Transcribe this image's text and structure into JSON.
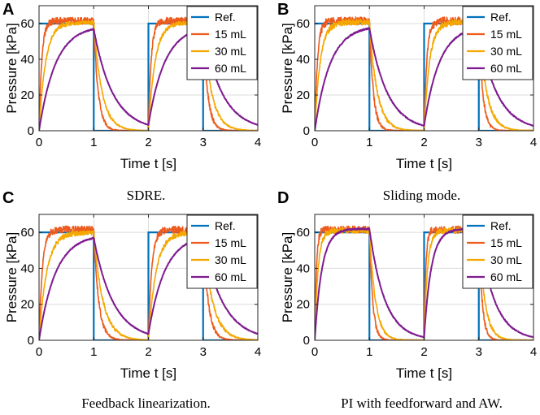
{
  "chart_data": [
    {
      "type": "line",
      "panel": "A",
      "caption": "SDRE.",
      "title": "",
      "xlabel": "Time t [s]",
      "ylabel": "Pressure [kPa]",
      "xlim": [
        0,
        4
      ],
      "ylim": [
        0,
        70
      ],
      "xticks": [
        "0",
        "1",
        "2",
        "3",
        "4"
      ],
      "yticks": [
        "0",
        "20",
        "40",
        "60"
      ],
      "grid": true,
      "legend_position": "top-right",
      "series": [
        {
          "name": "Ref.",
          "color": "#0072BD",
          "kind": "ref",
          "high": 60
        },
        {
          "name": "15 mL",
          "color": "#ED5B1E",
          "kind": "resp",
          "tau": 0.05,
          "plateau": 61.5,
          "decay": 0.08,
          "noise": 2.0
        },
        {
          "name": "30 mL",
          "color": "#F5A800",
          "kind": "resp",
          "tau": 0.12,
          "plateau": 60.5,
          "decay": 0.15,
          "noise": 1.2
        },
        {
          "name": "60 mL",
          "color": "#7E1B8F",
          "kind": "resp",
          "tau": 0.3,
          "plateau": 59.0,
          "decay": 0.35,
          "noise": 0.3
        }
      ]
    },
    {
      "type": "line",
      "panel": "B",
      "caption": "Sliding mode.",
      "title": "",
      "xlabel": "Time t [s]",
      "ylabel": "Pressure [kPa]",
      "xlim": [
        0,
        4
      ],
      "ylim": [
        0,
        70
      ],
      "xticks": [
        "0",
        "1",
        "2",
        "3",
        "4"
      ],
      "yticks": [
        "0",
        "20",
        "40",
        "60"
      ],
      "grid": true,
      "legend_position": "top-right",
      "series": [
        {
          "name": "Ref.",
          "color": "#0072BD",
          "kind": "ref",
          "high": 60
        },
        {
          "name": "15 mL",
          "color": "#ED5B1E",
          "kind": "resp",
          "tau": 0.05,
          "plateau": 61.5,
          "decay": 0.07,
          "noise": 2.2
        },
        {
          "name": "30 mL",
          "color": "#F5A800",
          "kind": "resp",
          "tau": 0.1,
          "plateau": 60.8,
          "decay": 0.14,
          "noise": 1.6
        },
        {
          "name": "60 mL",
          "color": "#7E1B8F",
          "kind": "resp",
          "tau": 0.28,
          "plateau": 59.0,
          "decay": 0.33,
          "noise": 0.4
        }
      ]
    },
    {
      "type": "line",
      "panel": "C",
      "caption": "Feedback linearization.",
      "title": "",
      "xlabel": "Time t [s]",
      "ylabel": "Pressure [kPa]",
      "xlim": [
        0,
        4
      ],
      "ylim": [
        0,
        70
      ],
      "xticks": [
        "0",
        "1",
        "2",
        "3",
        "4"
      ],
      "yticks": [
        "0",
        "20",
        "40",
        "60"
      ],
      "grid": true,
      "legend_position": "top-right",
      "series": [
        {
          "name": "Ref.",
          "color": "#0072BD",
          "kind": "ref",
          "high": 60
        },
        {
          "name": "15 mL",
          "color": "#ED5B1E",
          "kind": "resp",
          "tau": 0.06,
          "plateau": 61.5,
          "decay": 0.09,
          "noise": 2.0
        },
        {
          "name": "30 mL",
          "color": "#F5A800",
          "kind": "resp",
          "tau": 0.14,
          "plateau": 60.0,
          "decay": 0.17,
          "noise": 1.5
        },
        {
          "name": "60 mL",
          "color": "#7E1B8F",
          "kind": "resp",
          "tau": 0.3,
          "plateau": 59.0,
          "decay": 0.36,
          "noise": 0.3
        }
      ]
    },
    {
      "type": "line",
      "panel": "D",
      "caption": "PI with feedforward and AW.",
      "title": "",
      "xlabel": "Time t [s]",
      "ylabel": "Pressure [kPa]",
      "xlim": [
        0,
        4
      ],
      "ylim": [
        0,
        70
      ],
      "xticks": [
        "0",
        "1",
        "2",
        "3",
        "4"
      ],
      "yticks": [
        "0",
        "20",
        "40",
        "60"
      ],
      "grid": true,
      "legend_position": "top-right",
      "series": [
        {
          "name": "Ref.",
          "color": "#0072BD",
          "kind": "ref",
          "high": 60
        },
        {
          "name": "15 mL",
          "color": "#ED5B1E",
          "kind": "resp",
          "tau": 0.03,
          "plateau": 61.5,
          "decay": 0.06,
          "noise": 2.0
        },
        {
          "name": "30 mL",
          "color": "#F5A800",
          "kind": "resp",
          "tau": 0.06,
          "plateau": 61.0,
          "decay": 0.11,
          "noise": 1.5
        },
        {
          "name": "60 mL",
          "color": "#7E1B8F",
          "kind": "resp",
          "tau": 0.13,
          "plateau": 62.0,
          "decay": 0.28,
          "noise": 0.4
        }
      ]
    }
  ]
}
